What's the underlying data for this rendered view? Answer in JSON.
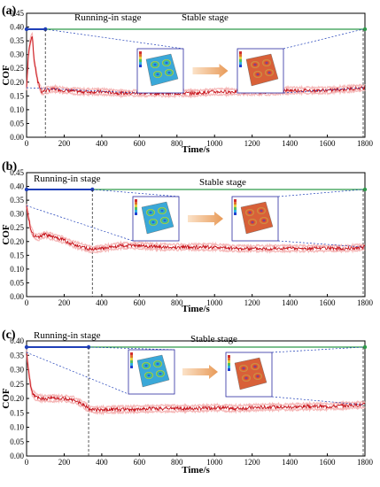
{
  "chart_data": [
    {
      "type": "line",
      "panel_label": "(a)",
      "xlabel": "Time/s",
      "ylabel": "COF",
      "xlim": [
        0,
        1800
      ],
      "ylim": [
        0,
        0.45
      ],
      "xticks": [
        0,
        200,
        400,
        600,
        800,
        1000,
        1200,
        1400,
        1600,
        1800
      ],
      "yticks": [
        "0.00",
        "0.05",
        "0.10",
        "0.15",
        "0.20",
        "0.25",
        "0.30",
        "0.35",
        "0.40",
        "0.45"
      ],
      "annotations": {
        "running_in": "Running-in stage",
        "stable": "Stable stage"
      },
      "stage_boundary": 100,
      "series": [
        {
          "x": [
            0,
            10,
            20,
            30,
            40,
            60,
            80,
            100,
            150,
            200,
            300,
            400,
            500,
            600,
            700,
            800,
            900,
            1000,
            1100,
            1200,
            1300,
            1400,
            1500,
            1600,
            1700,
            1800
          ],
          "y": [
            0.18,
            0.3,
            0.35,
            0.37,
            0.28,
            0.2,
            0.165,
            0.17,
            0.175,
            0.17,
            0.165,
            0.165,
            0.16,
            0.16,
            0.16,
            0.16,
            0.16,
            0.165,
            0.165,
            0.165,
            0.165,
            0.17,
            0.17,
            0.17,
            0.175,
            0.18
          ]
        }
      ]
    },
    {
      "type": "line",
      "panel_label": "(b)",
      "xlabel": "Time/s",
      "ylabel": "COF",
      "xlim": [
        0,
        1800
      ],
      "ylim": [
        0,
        0.45
      ],
      "xticks": [
        0,
        200,
        400,
        600,
        800,
        1000,
        1200,
        1400,
        1600,
        1800
      ],
      "yticks": [
        "0.00",
        "0.05",
        "0.10",
        "0.15",
        "0.20",
        "0.25",
        "0.30",
        "0.35",
        "0.40",
        "0.45"
      ],
      "annotations": {
        "running_in": "Running-in stage",
        "stable": "Stable stage"
      },
      "stage_boundary": 350,
      "series": [
        {
          "x": [
            0,
            10,
            20,
            40,
            60,
            100,
            150,
            200,
            250,
            300,
            350,
            400,
            500,
            600,
            700,
            800,
            900,
            1000,
            1100,
            1200,
            1300,
            1400,
            1500,
            1600,
            1700,
            1800
          ],
          "y": [
            0.33,
            0.29,
            0.25,
            0.22,
            0.215,
            0.225,
            0.215,
            0.205,
            0.19,
            0.18,
            0.17,
            0.175,
            0.185,
            0.185,
            0.18,
            0.18,
            0.18,
            0.18,
            0.175,
            0.175,
            0.175,
            0.175,
            0.175,
            0.175,
            0.175,
            0.18
          ]
        }
      ]
    },
    {
      "type": "line",
      "panel_label": "(c)",
      "xlabel": "Time/s",
      "ylabel": "COF",
      "xlim": [
        0,
        1800
      ],
      "ylim": [
        0,
        0.4
      ],
      "xticks": [
        0,
        200,
        400,
        600,
        800,
        1000,
        1200,
        1400,
        1600,
        1800
      ],
      "yticks": [
        "0.00",
        "0.05",
        "0.10",
        "0.15",
        "0.20",
        "0.25",
        "0.30",
        "0.35",
        "0.40"
      ],
      "annotations": {
        "running_in": "Running-in stage",
        "stable": "Stable stage"
      },
      "stage_boundary": 330,
      "series": [
        {
          "x": [
            0,
            10,
            20,
            30,
            50,
            80,
            100,
            150,
            200,
            250,
            300,
            330,
            360,
            400,
            500,
            600,
            700,
            800,
            900,
            1000,
            1100,
            1200,
            1300,
            1400,
            1500,
            1600,
            1700,
            1800
          ],
          "y": [
            0.36,
            0.3,
            0.25,
            0.22,
            0.205,
            0.2,
            0.2,
            0.2,
            0.2,
            0.195,
            0.18,
            0.165,
            0.16,
            0.16,
            0.162,
            0.163,
            0.165,
            0.165,
            0.165,
            0.168,
            0.165,
            0.168,
            0.17,
            0.17,
            0.172,
            0.172,
            0.175,
            0.178
          ]
        }
      ]
    }
  ]
}
